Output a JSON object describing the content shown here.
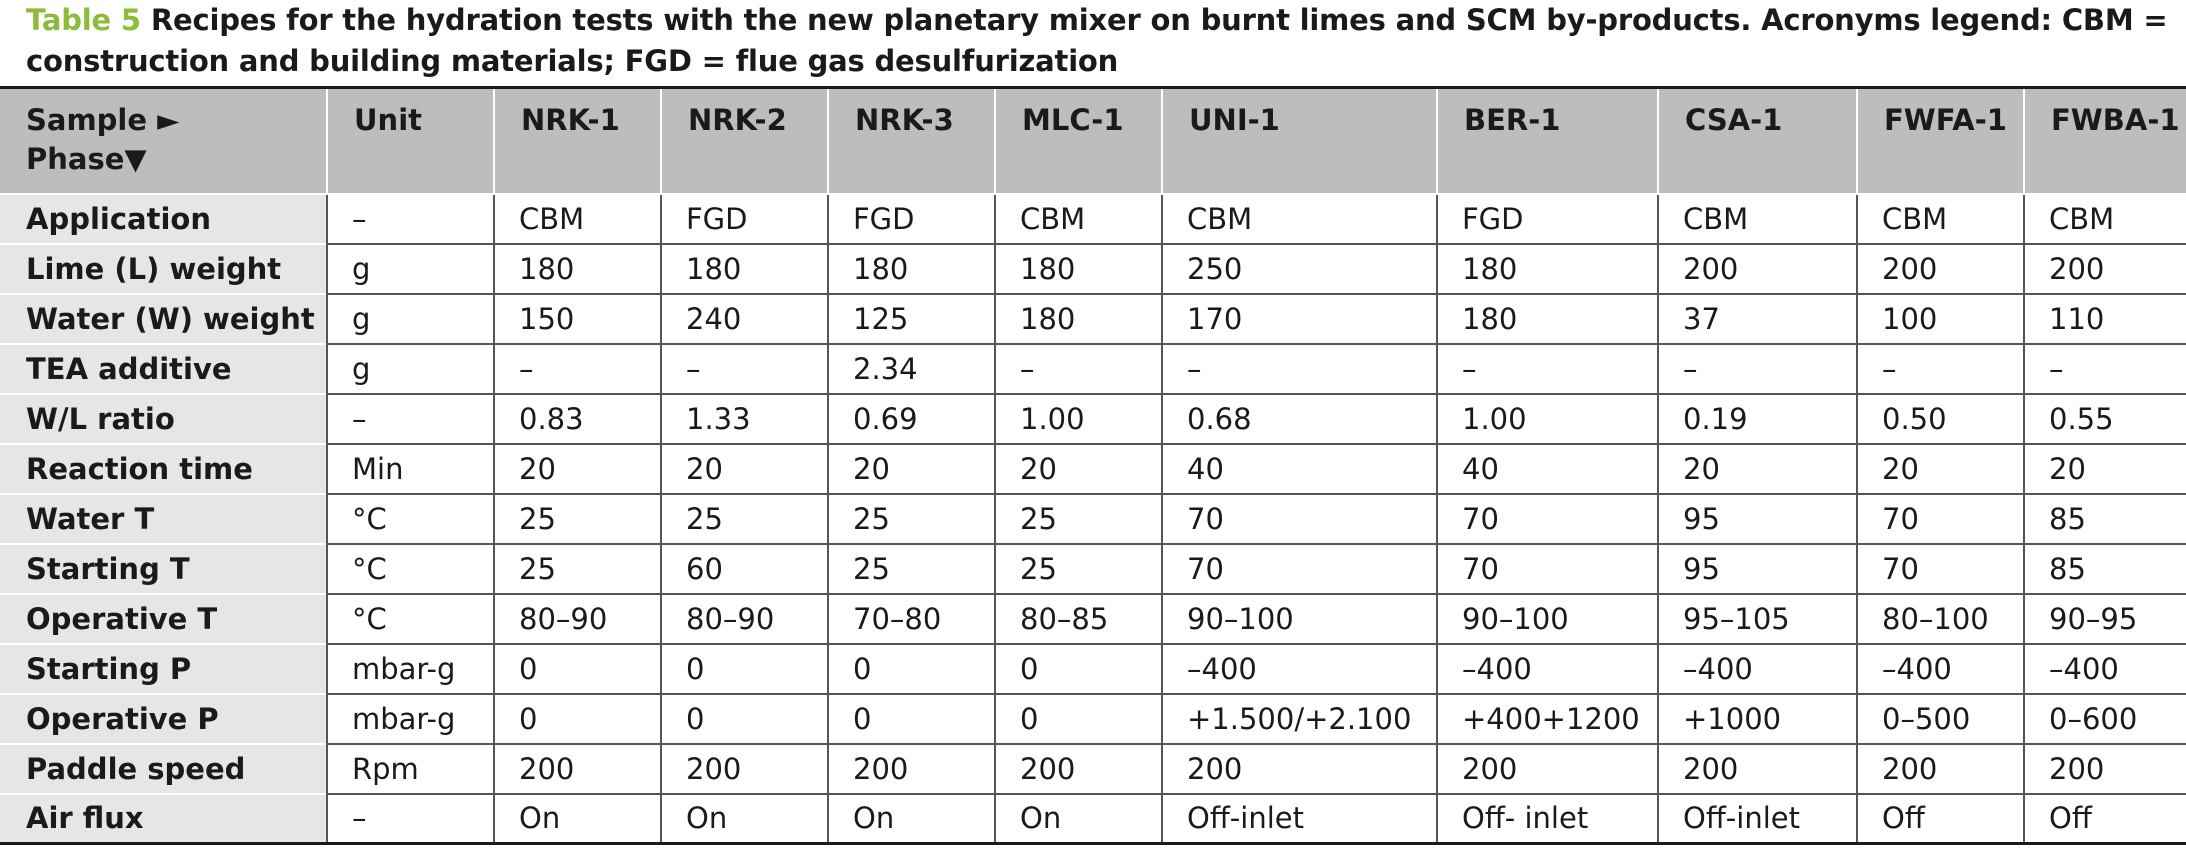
{
  "caption": {
    "label": "Table 5",
    "text": "Recipes for the hydration tests with the new planetary mixer on burnt limes and SCM by-products. Acronyms legend: CBM = construction and building materials; FGD = flue gas desulfurization"
  },
  "table": {
    "header": {
      "corner_line1": "Sample ►",
      "corner_line2": "Phase▼",
      "unit": "Unit",
      "samples": [
        "NRK-1",
        "NRK-2",
        "NRK-3",
        "MLC-1",
        "UNI-1",
        "BER-1",
        "CSA-1",
        "FWFA-1",
        "FWBA-1"
      ]
    },
    "rows": [
      {
        "phase": "Application",
        "unit": "–",
        "values": [
          "CBM",
          "FGD",
          "FGD",
          "CBM",
          "CBM",
          "FGD",
          "CBM",
          "CBM",
          "CBM"
        ]
      },
      {
        "phase": "Lime (L) weight",
        "unit": "g",
        "values": [
          "180",
          "180",
          "180",
          "180",
          "250",
          "180",
          "200",
          "200",
          "200"
        ]
      },
      {
        "phase": "Water (W) weight",
        "unit": "g",
        "values": [
          "150",
          "240",
          "125",
          "180",
          "170",
          "180",
          "37",
          "100",
          "110"
        ]
      },
      {
        "phase": "TEA additive",
        "unit": "g",
        "values": [
          "–",
          "–",
          "2.34",
          "–",
          "–",
          "–",
          "–",
          "–",
          "–"
        ]
      },
      {
        "phase": "W/L ratio",
        "unit": "–",
        "values": [
          "0.83",
          "1.33",
          "0.69",
          "1.00",
          "0.68",
          "1.00",
          "0.19",
          "0.50",
          "0.55"
        ]
      },
      {
        "phase": "Reaction time",
        "unit": "Min",
        "values": [
          "20",
          "20",
          "20",
          "20",
          "40",
          "40",
          "20",
          "20",
          "20"
        ]
      },
      {
        "phase": "Water T",
        "unit": "°C",
        "values": [
          "25",
          "25",
          "25",
          "25",
          "70",
          "70",
          "95",
          "70",
          "85"
        ]
      },
      {
        "phase": "Starting T",
        "unit": "°C",
        "values": [
          "25",
          "60",
          "25",
          "25",
          "70",
          "70",
          "95",
          "70",
          "85"
        ]
      },
      {
        "phase": "Operative T",
        "unit": "°C",
        "values": [
          "80–90",
          "80–90",
          "70–80",
          "80–85",
          "90–100",
          "90–100",
          "95–105",
          "80–100",
          "90–95"
        ]
      },
      {
        "phase": "Starting P",
        "unit": "mbar-g",
        "values": [
          "0",
          "0",
          "0",
          "0",
          "–400",
          "–400",
          "–400",
          "–400",
          "–400"
        ]
      },
      {
        "phase": "Operative P",
        "unit": "mbar-g",
        "values": [
          "0",
          "0",
          "0",
          "0",
          "+1.500/+2.100",
          "+400+1200",
          "+1000",
          "0–500",
          "0–600"
        ]
      },
      {
        "phase": "Paddle speed",
        "unit": "Rpm",
        "values": [
          "200",
          "200",
          "200",
          "200",
          "200",
          "200",
          "200",
          "200",
          "200"
        ]
      },
      {
        "phase": "Air flux",
        "unit": "–",
        "values": [
          "On",
          "On",
          "On",
          "On",
          "Off-inlet",
          "Off- inlet",
          "Off-inlet",
          "Off",
          "Off"
        ]
      }
    ]
  }
}
